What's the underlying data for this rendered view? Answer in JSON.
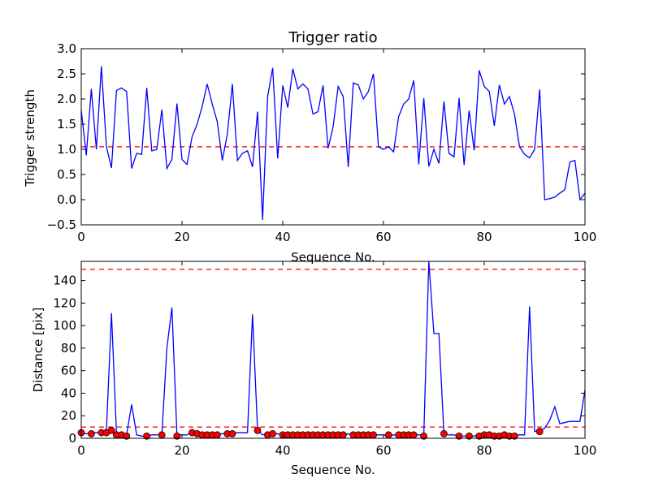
{
  "chart_data": [
    {
      "type": "line",
      "title": "Trigger ratio",
      "xlabel": "Sequence No.",
      "ylabel": "Trigger strength",
      "xlim": [
        0,
        100
      ],
      "ylim": [
        -0.5,
        3.0
      ],
      "xticks": [
        "0",
        "20",
        "40",
        "60",
        "80",
        "100"
      ],
      "yticks": [
        "−0.5",
        "0.0",
        "0.5",
        "1.0",
        "1.5",
        "2.0",
        "2.5",
        "3.0"
      ],
      "grid": false,
      "threshold": 1.05,
      "colors": {
        "line": "#0000ff",
        "threshold": "#ff0000"
      },
      "series": [
        {
          "x": [
            0,
            1,
            2,
            3,
            4,
            5,
            6,
            7,
            8,
            9,
            10,
            11,
            12,
            13,
            14,
            15,
            16,
            17,
            18,
            19,
            20,
            21,
            22,
            23,
            24,
            25,
            26,
            27,
            28,
            29,
            30,
            31,
            32,
            33,
            34,
            35,
            36,
            37,
            38,
            39,
            40,
            41,
            42,
            43,
            44,
            45,
            46,
            47,
            48,
            49,
            50,
            51,
            52,
            53,
            54,
            55,
            56,
            57,
            58,
            59,
            60,
            61,
            62,
            63,
            64,
            65,
            66,
            67,
            68,
            69,
            70,
            71,
            72,
            73,
            74,
            75,
            76,
            77,
            78,
            79,
            80,
            81,
            82,
            83,
            84,
            85,
            86,
            87,
            88,
            89,
            90,
            91,
            92,
            93,
            94,
            95,
            96,
            97,
            98,
            99,
            100
          ],
          "values": [
            1.78,
            0.88,
            2.2,
            1.0,
            2.65,
            1.05,
            0.63,
            2.17,
            2.22,
            2.15,
            0.62,
            0.92,
            0.9,
            2.22,
            0.97,
            1.0,
            1.79,
            0.62,
            0.8,
            1.91,
            0.8,
            0.7,
            1.25,
            1.5,
            1.85,
            2.3,
            1.9,
            1.55,
            0.78,
            1.3,
            2.3,
            0.78,
            0.92,
            0.97,
            0.65,
            1.75,
            -0.4,
            2.05,
            2.62,
            0.82,
            2.27,
            1.83,
            2.6,
            2.2,
            2.3,
            2.2,
            1.7,
            1.75,
            2.27,
            1.02,
            1.45,
            2.25,
            2.05,
            0.65,
            2.32,
            2.28,
            2.0,
            2.15,
            2.5,
            1.05,
            1.0,
            1.05,
            0.95,
            1.65,
            1.9,
            2.0,
            2.37,
            0.7,
            2.02,
            0.66,
            1.0,
            0.72,
            1.95,
            0.92,
            0.85,
            2.02,
            0.69,
            1.77,
            0.98,
            2.57,
            2.25,
            2.15,
            1.47,
            2.28,
            1.9,
            2.05,
            1.7,
            1.05,
            0.9,
            0.83,
            1.0,
            2.19,
            0.0,
            0.02,
            0.05,
            0.13,
            0.2,
            0.75,
            0.78,
            0.0,
            0.13
          ]
        }
      ]
    },
    {
      "type": "line",
      "title": "",
      "xlabel": "Sequence No.",
      "ylabel": "Distance [pix]",
      "xlim": [
        0,
        100
      ],
      "ylim": [
        0,
        157
      ],
      "xticks": [
        "0",
        "20",
        "40",
        "60",
        "80",
        "100"
      ],
      "yticks": [
        "0",
        "20",
        "40",
        "60",
        "80",
        "100",
        "120",
        "140"
      ],
      "grid": false,
      "thresholds": [
        150,
        10
      ],
      "colors": {
        "line": "#0000ff",
        "threshold": "#ff0000",
        "marker": "#ff0000",
        "marker_edge": "#000000"
      },
      "series": [
        {
          "x": [
            0,
            1,
            2,
            3,
            4,
            5,
            6,
            7,
            8,
            9,
            10,
            11,
            12,
            13,
            14,
            15,
            16,
            17,
            18,
            19,
            20,
            21,
            22,
            23,
            24,
            25,
            26,
            27,
            28,
            29,
            30,
            31,
            32,
            33,
            34,
            35,
            36,
            37,
            38,
            39,
            40,
            41,
            42,
            43,
            44,
            45,
            46,
            47,
            48,
            49,
            50,
            51,
            52,
            53,
            54,
            55,
            56,
            57,
            58,
            59,
            60,
            61,
            62,
            63,
            64,
            65,
            66,
            67,
            68,
            69,
            70,
            71,
            72,
            73,
            74,
            75,
            76,
            77,
            78,
            79,
            80,
            81,
            82,
            83,
            84,
            85,
            86,
            87,
            88,
            89,
            90,
            91,
            92,
            93,
            94,
            95,
            96,
            97,
            98,
            99,
            100
          ],
          "values": [
            5,
            4,
            5,
            5,
            5,
            7,
            111,
            4,
            3,
            3,
            30,
            3,
            2,
            2,
            3,
            3,
            3,
            80,
            116,
            3,
            3,
            3,
            6,
            5,
            4,
            4,
            4,
            4,
            4,
            5,
            5,
            5,
            5,
            5,
            110,
            7,
            3,
            4,
            4,
            4,
            3,
            3,
            3,
            3,
            3,
            3,
            3,
            3,
            3,
            4,
            3,
            3,
            3,
            4,
            3,
            3,
            3,
            3,
            3,
            3,
            3,
            2,
            3,
            3,
            3,
            3,
            3,
            3,
            3,
            157,
            93,
            93,
            4,
            3,
            3,
            2,
            2,
            2,
            2,
            3,
            3,
            3,
            3,
            3,
            4,
            3,
            3,
            3,
            3,
            117,
            6,
            7,
            9,
            16,
            28,
            13,
            14,
            15,
            15,
            15,
            43
          ]
        }
      ],
      "markers": {
        "x": [
          0,
          2,
          4,
          5,
          6,
          7,
          8,
          9,
          13,
          16,
          19,
          22,
          23,
          24,
          25,
          26,
          27,
          29,
          30,
          35,
          37,
          38,
          40,
          41,
          42,
          43,
          44,
          45,
          46,
          47,
          48,
          49,
          50,
          51,
          52,
          54,
          55,
          56,
          57,
          58,
          61,
          63,
          64,
          65,
          66,
          68,
          72,
          75,
          77,
          79,
          80,
          81,
          82,
          83,
          84,
          85,
          86,
          91
        ],
        "values": [
          5,
          4,
          5,
          5,
          7,
          3,
          3,
          2,
          2,
          3,
          2,
          5,
          4,
          3,
          3,
          3,
          3,
          4,
          4,
          7,
          3,
          4,
          3,
          3,
          3,
          3,
          3,
          3,
          3,
          3,
          3,
          3,
          3,
          3,
          3,
          3,
          3,
          3,
          3,
          3,
          3,
          3,
          3,
          3,
          3,
          2,
          4,
          2,
          2,
          2,
          3,
          3,
          2,
          2,
          3,
          2,
          2,
          6
        ]
      }
    }
  ]
}
